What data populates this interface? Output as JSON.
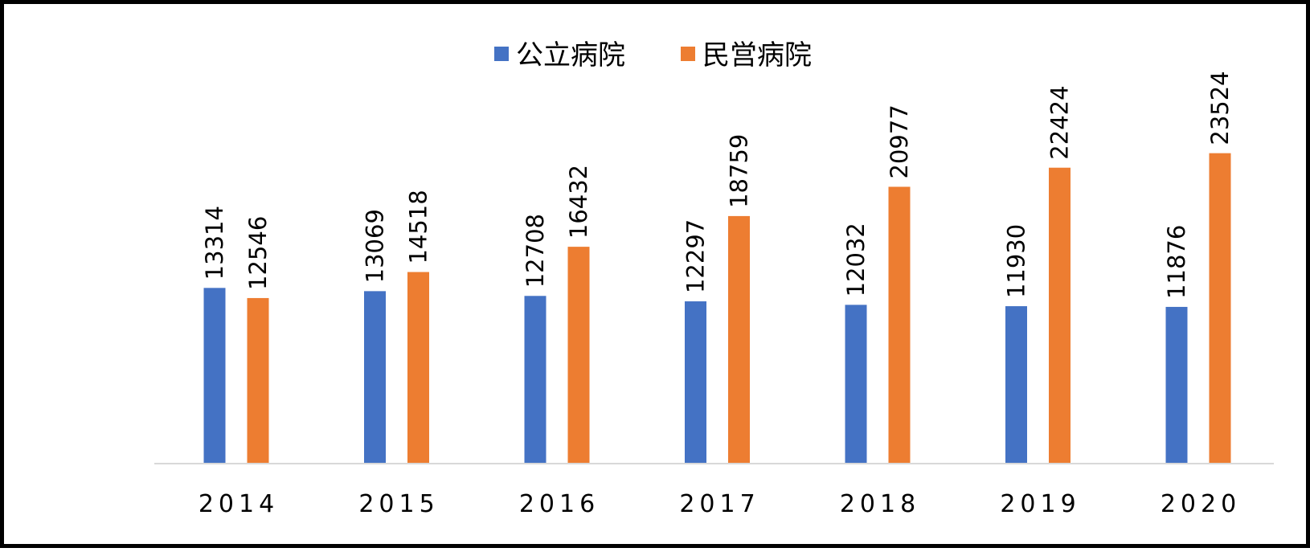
{
  "chart_data": {
    "type": "bar",
    "categories": [
      "2014",
      "2015",
      "2016",
      "2017",
      "2018",
      "2019",
      "2020"
    ],
    "series": [
      {
        "name": "公立病院",
        "values": [
          13314,
          13069,
          12708,
          12297,
          12032,
          11930,
          11876
        ]
      },
      {
        "name": "民営病院",
        "values": [
          12546,
          14518,
          16432,
          18759,
          20977,
          22424,
          23524
        ]
      }
    ],
    "ylim": [
      0,
      33000
    ],
    "grid": false,
    "legend_position": "top",
    "data_labels": true,
    "colors": {
      "公立病院": "#4472C4",
      "民営病院": "#ED7D31",
      "axis": "#D9D9D9",
      "border": "#000000"
    }
  }
}
